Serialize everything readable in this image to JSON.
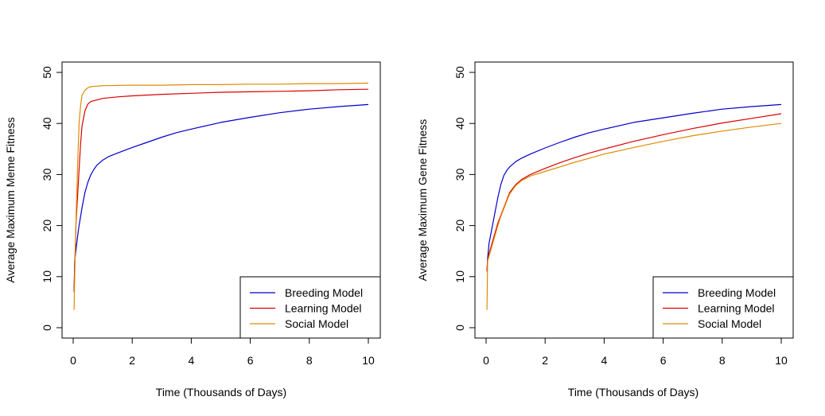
{
  "chart_data": [
    {
      "type": "line",
      "title": "",
      "xlabel": "Time (Thousands of Days)",
      "ylabel": "Average Maximum Meme Fitness",
      "xlim": [
        0,
        10
      ],
      "ylim": [
        0,
        50
      ],
      "xticks": [
        0,
        2,
        4,
        6,
        8,
        10
      ],
      "yticks": [
        0,
        10,
        20,
        30,
        40,
        50
      ],
      "legend_position": "bottom-right",
      "series": [
        {
          "name": "Breeding Model",
          "color": "#0000cc",
          "x": [
            0.03,
            0.05,
            0.1,
            0.15,
            0.2,
            0.3,
            0.4,
            0.5,
            0.6,
            0.7,
            0.8,
            1.0,
            1.2,
            1.5,
            2.0,
            2.5,
            3.0,
            3.5,
            4.0,
            5.0,
            6.0,
            7.0,
            8.0,
            9.0,
            10.0
          ],
          "y": [
            7.0,
            13.0,
            15.5,
            18.0,
            20.0,
            23.5,
            26.5,
            28.5,
            30.0,
            31.0,
            31.8,
            32.8,
            33.5,
            34.2,
            35.3,
            36.3,
            37.3,
            38.2,
            38.9,
            40.2,
            41.2,
            42.1,
            42.8,
            43.3,
            43.7
          ]
        },
        {
          "name": "Learning Model",
          "color": "#dd0000",
          "x": [
            0.03,
            0.05,
            0.1,
            0.15,
            0.2,
            0.25,
            0.3,
            0.4,
            0.5,
            0.6,
            0.8,
            1.0,
            1.5,
            2.0,
            3.0,
            4.0,
            5.0,
            6.0,
            7.0,
            8.0,
            9.0,
            10.0
          ],
          "y": [
            7.0,
            12.0,
            21.0,
            26.0,
            31.0,
            36.0,
            39.5,
            42.5,
            43.8,
            44.3,
            44.6,
            44.9,
            45.2,
            45.4,
            45.7,
            45.9,
            46.1,
            46.2,
            46.3,
            46.4,
            46.6,
            46.7
          ]
        },
        {
          "name": "Social Model",
          "color": "#e08a00",
          "x": [
            0.03,
            0.05,
            0.1,
            0.15,
            0.2,
            0.25,
            0.3,
            0.4,
            0.5,
            0.6,
            0.8,
            1.0,
            2.0,
            3.0,
            4.0,
            5.0,
            6.0,
            7.0,
            8.0,
            9.0,
            10.0
          ],
          "y": [
            3.5,
            10.0,
            22.0,
            32.0,
            40.0,
            43.5,
            45.5,
            46.5,
            47.0,
            47.2,
            47.3,
            47.4,
            47.5,
            47.5,
            47.6,
            47.6,
            47.7,
            47.7,
            47.8,
            47.8,
            47.9
          ]
        }
      ]
    },
    {
      "type": "line",
      "title": "",
      "xlabel": "Time (Thousands of Days)",
      "ylabel": "Average Maximum Gene Fitness",
      "xlim": [
        0,
        10
      ],
      "ylim": [
        0,
        50
      ],
      "xticks": [
        0,
        2,
        4,
        6,
        8,
        10
      ],
      "yticks": [
        0,
        10,
        20,
        30,
        40,
        50
      ],
      "legend_position": "bottom-right",
      "series": [
        {
          "name": "Breeding Model",
          "color": "#0000cc",
          "x": [
            0.03,
            0.05,
            0.1,
            0.2,
            0.3,
            0.4,
            0.5,
            0.6,
            0.7,
            0.8,
            1.0,
            1.2,
            1.5,
            2.0,
            2.5,
            3.0,
            3.5,
            4.0,
            5.0,
            6.0,
            7.0,
            8.0,
            9.0,
            10.0
          ],
          "y": [
            11.0,
            13.5,
            16.5,
            19.5,
            22.5,
            25.5,
            28.0,
            29.8,
            30.8,
            31.5,
            32.5,
            33.2,
            34.0,
            35.2,
            36.3,
            37.3,
            38.2,
            38.9,
            40.2,
            41.1,
            42.0,
            42.8,
            43.3,
            43.7
          ]
        },
        {
          "name": "Learning Model",
          "color": "#dd0000",
          "x": [
            0.03,
            0.05,
            0.1,
            0.2,
            0.3,
            0.4,
            0.5,
            0.6,
            0.7,
            0.8,
            1.0,
            1.2,
            1.5,
            2.0,
            2.5,
            3.0,
            3.5,
            4.0,
            5.0,
            6.0,
            7.0,
            8.0,
            9.0,
            10.0
          ],
          "y": [
            11.0,
            13.0,
            14.5,
            16.5,
            18.5,
            20.5,
            22.0,
            23.5,
            25.0,
            26.5,
            28.0,
            29.0,
            30.0,
            31.2,
            32.3,
            33.3,
            34.2,
            35.0,
            36.5,
            37.8,
            39.0,
            40.1,
            41.0,
            41.9
          ]
        },
        {
          "name": "Social Model",
          "color": "#e08a00",
          "x": [
            0.03,
            0.05,
            0.1,
            0.2,
            0.3,
            0.4,
            0.5,
            0.6,
            0.7,
            0.8,
            1.0,
            1.2,
            1.5,
            2.0,
            2.5,
            3.0,
            3.5,
            4.0,
            5.0,
            6.0,
            7.0,
            8.0,
            9.0,
            10.0
          ],
          "y": [
            3.5,
            13.0,
            14.0,
            16.0,
            18.0,
            20.0,
            21.8,
            23.3,
            24.8,
            26.2,
            27.8,
            28.8,
            29.7,
            30.6,
            31.5,
            32.4,
            33.2,
            34.0,
            35.3,
            36.5,
            37.6,
            38.5,
            39.3,
            40.0
          ]
        }
      ]
    }
  ]
}
